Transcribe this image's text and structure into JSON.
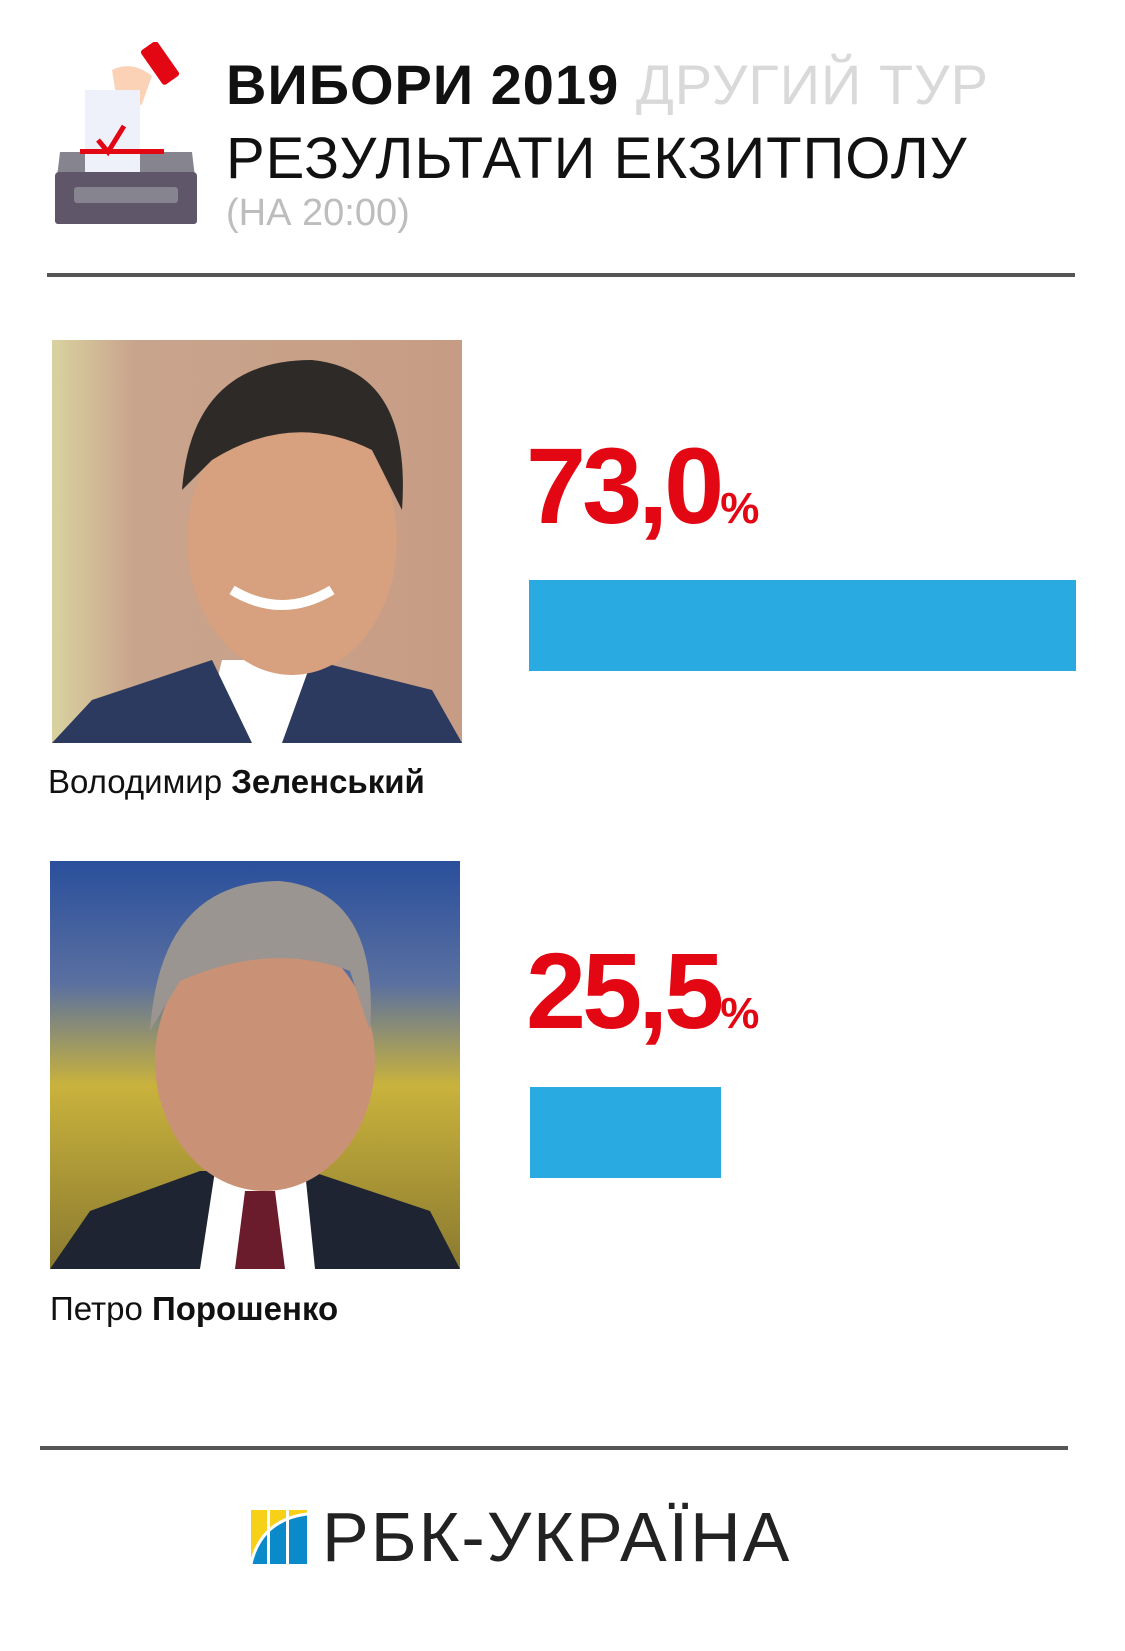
{
  "header": {
    "title_bold": "ВИБОРИ 2019",
    "title_light": "ДРУГИЙ ТУР",
    "subtitle": "РЕЗУЛЬТАТИ ЕКЗИТПОЛУ",
    "time": "(НА 20:00)",
    "icon": "ballot-box-icon"
  },
  "colors": {
    "bar": "#29aae1",
    "percent": "#e30613"
  },
  "chart_data": {
    "type": "bar",
    "orientation": "horizontal",
    "categories": [
      "Володимир Зеленський",
      "Петро Порошенко"
    ],
    "values": [
      73.0,
      25.5
    ],
    "unit": "%",
    "grid": false
  },
  "candidates": [
    {
      "first_name": "Володимир",
      "last_name": "Зеленський",
      "percent_label": "73,0",
      "percent_sign": "%",
      "value": 73.0
    },
    {
      "first_name": "Петро",
      "last_name": "Порошенко",
      "percent_label": "25,5",
      "percent_sign": "%",
      "value": 25.5
    }
  ],
  "footer": {
    "logo_text": "РБК-УКРАЇНА"
  }
}
